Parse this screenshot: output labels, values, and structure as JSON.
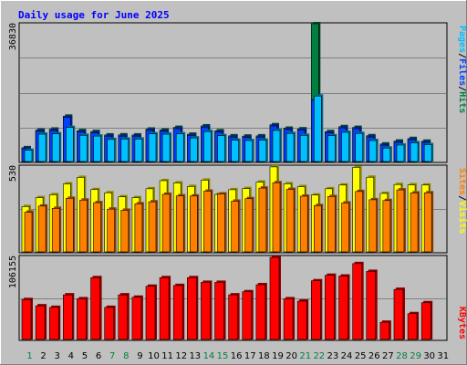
{
  "colors": {
    "background": "#C0C0C0",
    "panel": "#C0C0C0",
    "grid": "#808080",
    "title": "#0000FF",
    "pages": "#00C0FF",
    "files": "#0040FF",
    "hits": "#008040",
    "sites": "#FF8000",
    "visits": "#FFFF00",
    "kbytes": "#FF0000",
    "weekend_day": "#008040",
    "weekday": "#000000"
  },
  "chart_data": [
    {
      "type": "bar",
      "title": "Daily usage for June 2025",
      "panel": "hits-files-pages",
      "ymax_label": "36830",
      "ylim": [
        0,
        36830
      ],
      "legend": [
        "Pages",
        "Files",
        "Hits"
      ],
      "legend_separator": "/",
      "x": [
        1,
        2,
        3,
        4,
        5,
        6,
        7,
        8,
        9,
        10,
        11,
        12,
        13,
        14,
        15,
        16,
        17,
        18,
        19,
        20,
        21,
        22,
        23,
        24,
        25,
        26,
        27,
        28,
        29,
        30
      ],
      "series": [
        {
          "name": "Hits",
          "values": [
            3690,
            8420,
            8660,
            12120,
            8250,
            8010,
            7100,
            7120,
            7100,
            8660,
            8420,
            9130,
            7290,
            9530,
            8200,
            6870,
            6790,
            6860,
            9830,
            8890,
            8730,
            36830,
            8000,
            9330,
            9130,
            6890,
            4680,
            5460,
            6150,
            5430
          ]
        },
        {
          "name": "Files",
          "values": [
            3470,
            8080,
            8300,
            11810,
            7930,
            7690,
            6790,
            6780,
            6790,
            8320,
            8080,
            8790,
            6980,
            9210,
            7870,
            6550,
            6460,
            6530,
            9510,
            8560,
            8420,
            16430,
            7690,
            9000,
            8800,
            6560,
            4370,
            5130,
            5830,
            5110
          ]
        },
        {
          "name": "Pages",
          "values": [
            3000,
            7300,
            7400,
            9100,
            7000,
            6800,
            5900,
            6000,
            6000,
            7400,
            7300,
            7400,
            6300,
            8000,
            6900,
            5700,
            5600,
            5700,
            8300,
            7500,
            7000,
            17500,
            6900,
            7800,
            7500,
            5600,
            3600,
            4400,
            5000,
            4500
          ]
        }
      ]
    },
    {
      "type": "bar",
      "panel": "visits-sites",
      "ymax_label": "530",
      "ylim": [
        0,
        530
      ],
      "legend": [
        "Sites",
        "Visits"
      ],
      "legend_separator": "/",
      "x": [
        1,
        2,
        3,
        4,
        5,
        6,
        7,
        8,
        9,
        10,
        11,
        12,
        13,
        14,
        15,
        16,
        17,
        18,
        19,
        20,
        21,
        22,
        23,
        24,
        25,
        26,
        27,
        28,
        29,
        30
      ],
      "series": [
        {
          "name": "Visits",
          "values": [
            280,
            335,
            353,
            420,
            460,
            385,
            365,
            340,
            335,
            390,
            440,
            426,
            404,
            443,
            355,
            384,
            391,
            431,
            525,
            421,
            403,
            351,
            390,
            413,
            522,
            461,
            361,
            416,
            414,
            413
          ]
        },
        {
          "name": "Sites",
          "values": [
            245,
            283,
            269,
            331,
            320,
            304,
            264,
            257,
            297,
            309,
            356,
            346,
            345,
            375,
            358,
            313,
            329,
            394,
            427,
            386,
            344,
            286,
            342,
            302,
            373,
            322,
            317,
            383,
            364,
            365
          ]
        }
      ]
    },
    {
      "type": "bar",
      "panel": "kbytes",
      "ymax_label": "106155",
      "ylim": [
        0,
        106155
      ],
      "legend": [
        "KBytes"
      ],
      "x": [
        1,
        2,
        3,
        4,
        5,
        6,
        7,
        8,
        9,
        10,
        11,
        12,
        13,
        14,
        15,
        16,
        17,
        18,
        19,
        20,
        21,
        22,
        23,
        24,
        25,
        26,
        27,
        28,
        29,
        30
      ],
      "series": [
        {
          "name": "KBytes",
          "values": [
            51000,
            43000,
            41000,
            57000,
            52000,
            79000,
            41000,
            57000,
            54000,
            68000,
            79000,
            69000,
            79000,
            73000,
            73000,
            57000,
            61000,
            70000,
            105000,
            52000,
            49000,
            75000,
            82000,
            81000,
            97000,
            87000,
            22000,
            64000,
            33000,
            47000
          ]
        }
      ]
    }
  ],
  "x_axis": {
    "labels": [
      "1",
      "2",
      "3",
      "4",
      "5",
      "6",
      "7",
      "8",
      "9",
      "10",
      "11",
      "12",
      "13",
      "14",
      "15",
      "16",
      "17",
      "18",
      "19",
      "20",
      "21",
      "22",
      "23",
      "24",
      "25",
      "26",
      "27",
      "28",
      "29",
      "30",
      "31"
    ],
    "weekend_days": [
      1,
      7,
      8,
      14,
      15,
      21,
      22,
      28,
      29
    ]
  }
}
